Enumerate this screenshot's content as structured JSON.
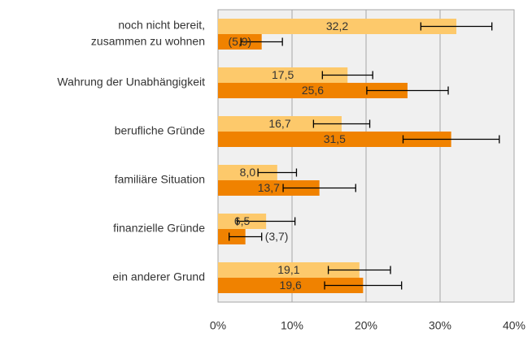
{
  "chart_data": {
    "type": "hbar",
    "categories": [
      [
        "noch nicht bereit,",
        "zusammen zu wohnen"
      ],
      "Wahrung der Unabhängigkeit",
      "berufliche Gründe",
      "familiäre Situation",
      "finanzielle Gründe",
      "ein anderer Grund"
    ],
    "series": [
      {
        "color": "#fdc96b",
        "values": [
          32.2,
          17.5,
          16.7,
          8.0,
          6.5,
          19.1
        ],
        "value_labels": [
          "32,2",
          "17,5",
          "16,7",
          "8,0",
          "6,5",
          "19,1"
        ],
        "errors": [
          4.8,
          3.4,
          3.8,
          2.6,
          3.9,
          4.2
        ]
      },
      {
        "color": "#f08200",
        "values": [
          5.9,
          25.6,
          31.5,
          13.7,
          3.7,
          19.6
        ],
        "value_labels": [
          "(5,9)",
          "25,6",
          "31,5",
          "13,7",
          "(3,7)",
          "19,6"
        ],
        "errors": [
          2.8,
          5.5,
          6.5,
          4.9,
          2.2,
          5.2
        ]
      }
    ],
    "xlim": [
      0,
      40
    ],
    "xticks": [
      {
        "value": 0,
        "label": "0%"
      },
      {
        "value": 10,
        "label": "10%"
      },
      {
        "value": 20,
        "label": "20%"
      },
      {
        "value": 30,
        "label": "30%"
      },
      {
        "value": 40,
        "label": "40%"
      }
    ],
    "grid": true
  }
}
